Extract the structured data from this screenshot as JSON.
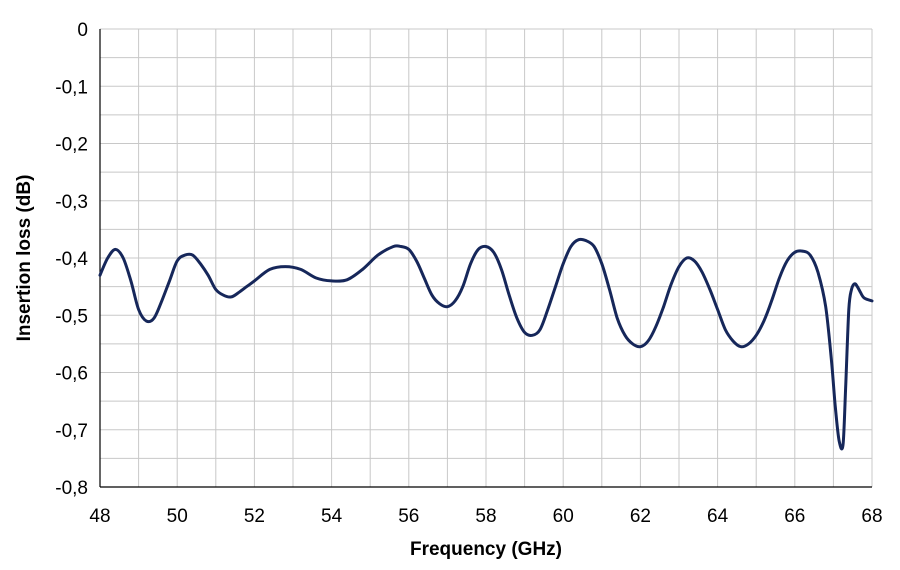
{
  "chart_data": {
    "type": "line",
    "title": "",
    "xlabel": "Frequency  (GHz)",
    "ylabel": "Insertion loss  (dB)",
    "xlim": [
      48,
      68
    ],
    "ylim": [
      -0.8,
      0
    ],
    "x_ticks": [
      48,
      50,
      52,
      54,
      56,
      58,
      60,
      62,
      64,
      66,
      68
    ],
    "x_tick_labels": [
      "48",
      "50",
      "52",
      "54",
      "56",
      "58",
      "60",
      "62",
      "64",
      "66",
      "68"
    ],
    "y_ticks": [
      0,
      -0.1,
      -0.2,
      -0.3,
      -0.4,
      -0.5,
      -0.6,
      -0.7,
      -0.8
    ],
    "y_tick_labels": [
      "0",
      "-0,1",
      "-0,2",
      "-0,3",
      "-0,4",
      "-0,5",
      "-0,6",
      "-0,7",
      "-0,8"
    ],
    "grid": true,
    "grid_x_step": 1,
    "grid_y_step": 0.05,
    "color": "#16275a",
    "series": [
      {
        "x": [
          48.0,
          48.2,
          48.4,
          48.6,
          48.8,
          49.0,
          49.2,
          49.4,
          49.6,
          49.8,
          50.0,
          50.2,
          50.4,
          50.6,
          50.8,
          51.0,
          51.2,
          51.4,
          51.6,
          51.8,
          52.0,
          52.4,
          52.8,
          53.2,
          53.6,
          54.0,
          54.4,
          54.8,
          55.2,
          55.6,
          55.8,
          56.0,
          56.2,
          56.4,
          56.6,
          56.8,
          57.0,
          57.2,
          57.4,
          57.6,
          57.8,
          58.0,
          58.2,
          58.4,
          58.6,
          58.8,
          59.0,
          59.2,
          59.4,
          59.6,
          59.8,
          60.0,
          60.2,
          60.4,
          60.6,
          60.8,
          61.0,
          61.2,
          61.4,
          61.6,
          61.8,
          62.0,
          62.2,
          62.4,
          62.6,
          62.8,
          63.0,
          63.2,
          63.4,
          63.6,
          63.8,
          64.0,
          64.2,
          64.4,
          64.6,
          64.8,
          65.0,
          65.2,
          65.4,
          65.6,
          65.8,
          66.0,
          66.2,
          66.4,
          66.6,
          66.8,
          66.95,
          67.05,
          67.15,
          67.25,
          67.32,
          67.4,
          67.47,
          67.55,
          67.62,
          67.7,
          67.8,
          68.0
        ],
        "y": [
          -0.43,
          -0.4,
          -0.385,
          -0.4,
          -0.44,
          -0.49,
          -0.51,
          -0.505,
          -0.475,
          -0.44,
          -0.405,
          -0.395,
          -0.395,
          -0.41,
          -0.43,
          -0.455,
          -0.465,
          -0.468,
          -0.46,
          -0.45,
          -0.44,
          -0.42,
          -0.415,
          -0.42,
          -0.435,
          -0.44,
          -0.438,
          -0.42,
          -0.395,
          -0.38,
          -0.38,
          -0.385,
          -0.405,
          -0.435,
          -0.465,
          -0.48,
          -0.485,
          -0.475,
          -0.45,
          -0.41,
          -0.385,
          -0.38,
          -0.39,
          -0.42,
          -0.465,
          -0.505,
          -0.53,
          -0.535,
          -0.525,
          -0.49,
          -0.45,
          -0.41,
          -0.38,
          -0.368,
          -0.37,
          -0.38,
          -0.41,
          -0.455,
          -0.505,
          -0.535,
          -0.55,
          -0.555,
          -0.545,
          -0.52,
          -0.485,
          -0.445,
          -0.415,
          -0.4,
          -0.405,
          -0.425,
          -0.455,
          -0.49,
          -0.525,
          -0.545,
          -0.555,
          -0.55,
          -0.535,
          -0.51,
          -0.475,
          -0.435,
          -0.405,
          -0.39,
          -0.388,
          -0.395,
          -0.425,
          -0.485,
          -0.58,
          -0.66,
          -0.72,
          -0.725,
          -0.62,
          -0.49,
          -0.455,
          -0.445,
          -0.45,
          -0.46,
          -0.47,
          -0.475
        ]
      }
    ]
  }
}
